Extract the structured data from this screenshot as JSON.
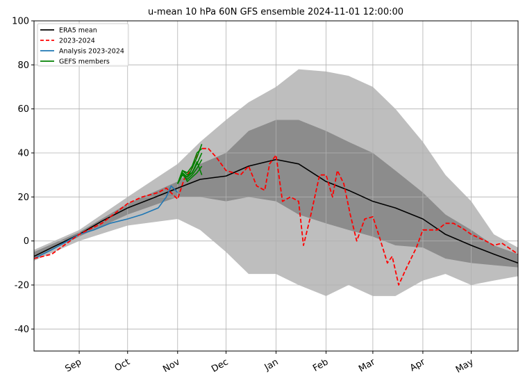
{
  "chart_data": {
    "type": "line",
    "title": "u-mean 10 hPa 60N GFS ensemble 2024-11-01 12:00:00",
    "xlabel": "",
    "ylabel": "",
    "xlim": [
      "2023-08-04",
      "2024-05-30"
    ],
    "ylim": [
      -50,
      100
    ],
    "yticks": [
      -40,
      -20,
      0,
      20,
      40,
      60,
      80,
      100
    ],
    "xticks": [
      {
        "date": "2023-09-01",
        "label": "Sep"
      },
      {
        "date": "2023-10-01",
        "label": "Oct"
      },
      {
        "date": "2023-11-01",
        "label": "Nov"
      },
      {
        "date": "2023-12-01",
        "label": "Dec"
      },
      {
        "date": "2024-01-01",
        "label": "Jan"
      },
      {
        "date": "2024-02-01",
        "label": "Feb"
      },
      {
        "date": "2024-03-01",
        "label": "Mar"
      },
      {
        "date": "2024-04-01",
        "label": "Apr"
      },
      {
        "date": "2024-05-01",
        "label": "May"
      }
    ],
    "grid": true,
    "legend_placement": "top-left",
    "bands": [
      {
        "role": "min-max",
        "color": "#bebebe",
        "x": [
          "2023-08-04",
          "2023-09-01",
          "2023-10-01",
          "2023-11-01",
          "2023-11-15",
          "2023-12-01",
          "2023-12-15",
          "2024-01-01",
          "2024-01-15",
          "2024-02-01",
          "2024-02-15",
          "2024-03-01",
          "2024-03-15",
          "2024-04-01",
          "2024-04-15",
          "2024-05-01",
          "2024-05-15",
          "2024-05-30"
        ],
        "upper": [
          -4,
          5,
          20,
          35,
          45,
          55,
          63,
          70,
          78,
          77,
          75,
          70,
          60,
          45,
          30,
          18,
          3,
          -3
        ],
        "lower": [
          -9,
          0,
          7,
          10,
          5,
          -5,
          -15,
          -15,
          -20,
          -25,
          -20,
          -25,
          -25,
          -18,
          -15,
          -20,
          -18,
          -16
        ]
      },
      {
        "role": "percentile",
        "color": "#8c8c8c",
        "x": [
          "2023-08-04",
          "2023-09-01",
          "2023-10-01",
          "2023-11-01",
          "2023-11-15",
          "2023-12-01",
          "2023-12-15",
          "2024-01-01",
          "2024-01-15",
          "2024-02-01",
          "2024-02-15",
          "2024-03-01",
          "2024-03-15",
          "2024-04-01",
          "2024-04-15",
          "2024-05-01",
          "2024-05-15",
          "2024-05-30"
        ],
        "upper": [
          -5,
          4,
          17,
          27,
          35,
          40,
          50,
          55,
          55,
          50,
          45,
          40,
          32,
          22,
          12,
          5,
          -2,
          -6
        ],
        "lower": [
          -8,
          2,
          12,
          20,
          20,
          18,
          20,
          18,
          12,
          8,
          5,
          2,
          -2,
          -3,
          -8,
          -10,
          -11,
          -12
        ]
      }
    ],
    "series": [
      {
        "name": "ERA5 mean",
        "color": "#000000",
        "style": "solid",
        "x": [
          "2023-08-04",
          "2023-08-15",
          "2023-09-01",
          "2023-09-15",
          "2023-10-01",
          "2023-10-15",
          "2023-11-01",
          "2023-11-15",
          "2023-12-01",
          "2023-12-15",
          "2024-01-01",
          "2024-01-15",
          "2024-02-01",
          "2024-02-15",
          "2024-03-01",
          "2024-03-15",
          "2024-04-01",
          "2024-04-15",
          "2024-05-01",
          "2024-05-15",
          "2024-05-30"
        ],
        "y": [
          -7,
          -3,
          3,
          9,
          15,
          19,
          24,
          28,
          29.5,
          34,
          37,
          35,
          27,
          23,
          18,
          15,
          10,
          3,
          -2,
          -6,
          -10
        ]
      },
      {
        "name": "2023-2024",
        "color": "#ff0000",
        "style": "dashed",
        "x": [
          "2023-08-04",
          "2023-08-15",
          "2023-09-01",
          "2023-09-15",
          "2023-10-01",
          "2023-10-10",
          "2023-10-20",
          "2023-10-25",
          "2023-11-01",
          "2023-11-05",
          "2023-11-10",
          "2023-11-15",
          "2023-11-20",
          "2023-11-25",
          "2023-12-01",
          "2023-12-10",
          "2023-12-15",
          "2023-12-20",
          "2023-12-25",
          "2023-12-28",
          "2024-01-01",
          "2024-01-05",
          "2024-01-10",
          "2024-01-15",
          "2024-01-18",
          "2024-01-22",
          "2024-01-28",
          "2024-02-01",
          "2024-02-05",
          "2024-02-08",
          "2024-02-12",
          "2024-02-16",
          "2024-02-20",
          "2024-02-25",
          "2024-03-01",
          "2024-03-05",
          "2024-03-10",
          "2024-03-13",
          "2024-03-17",
          "2024-03-22",
          "2024-03-28",
          "2024-04-01",
          "2024-04-10",
          "2024-04-15",
          "2024-04-20",
          "2024-04-25",
          "2024-05-01",
          "2024-05-10",
          "2024-05-15",
          "2024-05-20",
          "2024-05-30"
        ],
        "y": [
          -8,
          -6,
          3,
          8,
          17,
          20,
          22,
          24,
          19,
          28,
          33,
          42,
          42,
          38,
          32,
          30,
          34,
          25,
          23,
          35,
          39,
          18,
          20,
          18,
          -2,
          10,
          30,
          30,
          20,
          32,
          26,
          12,
          0,
          10,
          11,
          2,
          -10,
          -7,
          -20,
          -12,
          -3,
          5,
          5,
          8,
          8,
          6,
          3,
          0,
          -2,
          -1,
          -6
        ]
      },
      {
        "name": "Analysis 2023-2024",
        "color": "#1f77b4",
        "style": "solid",
        "x": [
          "2023-08-04",
          "2023-08-15",
          "2023-09-01",
          "2023-09-10",
          "2023-09-20",
          "2023-10-01",
          "2023-10-10",
          "2023-10-20",
          "2023-10-25",
          "2023-10-28",
          "2023-11-01"
        ],
        "y": [
          -8,
          -4,
          3,
          5,
          8,
          10,
          12,
          15,
          20,
          25,
          22
        ]
      },
      {
        "name": "GEFS members",
        "color": "#008000",
        "style": "solid",
        "x": [
          "2023-11-01",
          "2023-11-04",
          "2023-11-07",
          "2023-11-10",
          "2023-11-13",
          "2023-11-16"
        ],
        "members": [
          [
            26,
            31,
            29,
            33,
            38,
            44
          ],
          [
            26,
            32,
            30,
            31,
            35,
            40
          ],
          [
            26,
            30,
            28,
            30,
            33,
            37
          ],
          [
            26,
            31,
            27,
            29,
            31,
            34
          ],
          [
            26,
            32,
            31,
            34,
            40,
            42
          ],
          [
            26,
            30,
            29,
            31,
            36,
            30
          ]
        ]
      }
    ]
  }
}
